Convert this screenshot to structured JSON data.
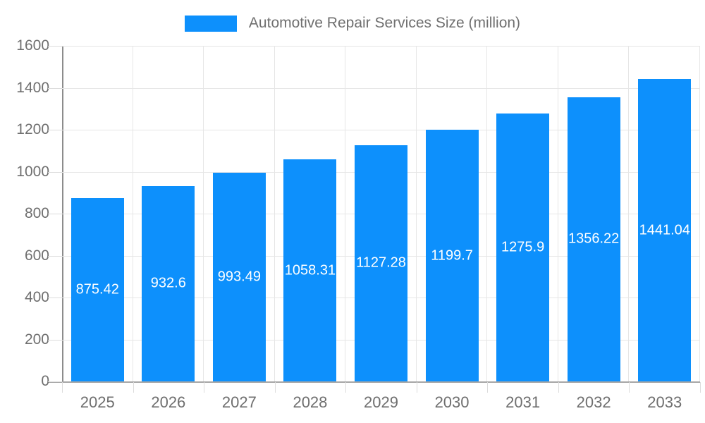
{
  "legend": {
    "label": "Automotive Repair Services Size (million)"
  },
  "chart_data": {
    "type": "bar",
    "title": "Automotive Repair Services Size (million)",
    "categories": [
      "2025",
      "2026",
      "2027",
      "2028",
      "2029",
      "2030",
      "2031",
      "2032",
      "2033"
    ],
    "values": [
      875.42,
      932.6,
      993.49,
      1058.31,
      1127.28,
      1199.7,
      1275.9,
      1356.22,
      1441.04
    ],
    "value_labels": [
      "875.42",
      "932.6",
      "993.49",
      "1058.31",
      "1127.28",
      "1199.7",
      "1275.9",
      "1356.22",
      "1441.04"
    ],
    "xlabel": "",
    "ylabel": "",
    "ylim": [
      0,
      1600
    ],
    "ytick_step": 200,
    "grid": "on",
    "legend_position": "top-center",
    "colors": {
      "bar": "#0d90fc",
      "value_label": "#ffffff",
      "axis_text": "#6f6f6f",
      "gridline": "#e6e6e6",
      "tick": "#dcdcdc",
      "y_axis_line": "#8c8c8c",
      "x_axis_line": "#a6a6a6",
      "background": "#ffffff"
    }
  }
}
